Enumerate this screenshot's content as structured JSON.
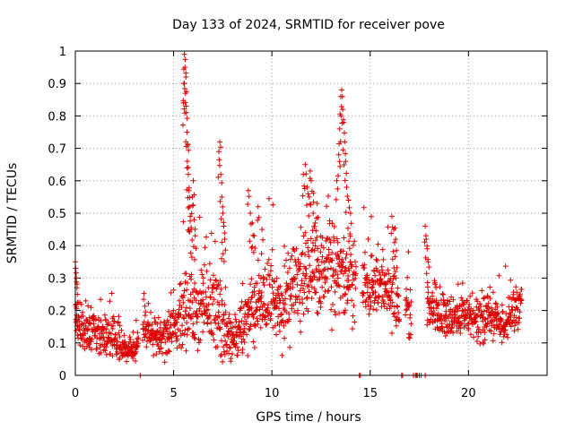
{
  "chart_data": {
    "type": "scatter",
    "title": "Day 133 of 2024, SRMTID for receiver pove",
    "xlabel": "GPS time / hours",
    "ylabel": "SRMTID / TECUs",
    "xlim": [
      0,
      24
    ],
    "ylim": [
      0,
      1
    ],
    "xticks": [
      0,
      5,
      10,
      15,
      20
    ],
    "yticks": [
      0,
      0.1,
      0.2,
      0.3,
      0.4,
      0.5,
      0.6,
      0.7,
      0.8,
      0.9,
      1
    ],
    "xtick_labels": [
      "0",
      "5",
      "10",
      "15",
      "20"
    ],
    "ytick_labels": [
      "0",
      "0.1",
      "0.2",
      "0.3",
      "0.4",
      "0.5",
      "0.6",
      "0.7",
      "0.8",
      "0.9",
      "1"
    ],
    "grid": true,
    "marker": "+",
    "color": "#dd0000",
    "envelope": {
      "x": [
        0,
        0.5,
        1,
        1.5,
        2,
        2.5,
        3,
        3.5,
        4,
        4.5,
        5,
        5.3,
        5.6,
        6,
        6.5,
        7,
        7.5,
        8,
        8.5,
        9,
        9.5,
        10,
        10.5,
        11,
        11.5,
        12,
        12.5,
        13,
        13.5,
        14,
        14.5,
        15,
        15.5,
        16,
        16.5,
        17,
        17.5,
        18,
        18.5,
        19,
        19.5,
        20,
        20.5,
        21,
        21.5,
        22,
        22.5,
        22.7
      ],
      "median": [
        0.16,
        0.13,
        0.14,
        0.12,
        0.11,
        0.08,
        0.08,
        0.14,
        0.12,
        0.12,
        0.15,
        0.16,
        0.21,
        0.24,
        0.22,
        0.21,
        0.17,
        0.1,
        0.17,
        0.22,
        0.25,
        0.23,
        0.21,
        0.26,
        0.31,
        0.33,
        0.32,
        0.34,
        0.33,
        0.31,
        0.29,
        0.26,
        0.27,
        0.24,
        0.24,
        0.2,
        0.18,
        0.22,
        0.19,
        0.17,
        0.18,
        0.19,
        0.17,
        0.18,
        0.17,
        0.16,
        0.2,
        0.25
      ],
      "spread": [
        0.06,
        0.05,
        0.05,
        0.05,
        0.04,
        0.03,
        0.03,
        0.04,
        0.04,
        0.05,
        0.06,
        0.08,
        0.12,
        0.12,
        0.1,
        0.1,
        0.08,
        0.05,
        0.07,
        0.09,
        0.1,
        0.09,
        0.09,
        0.1,
        0.12,
        0.12,
        0.11,
        0.12,
        0.12,
        0.1,
        0.08,
        0.08,
        0.07,
        0.07,
        0.07,
        0.06,
        0.05,
        0.06,
        0.05,
        0.05,
        0.05,
        0.05,
        0.05,
        0.05,
        0.05,
        0.05,
        0.06,
        0.05
      ]
    },
    "gaps": [
      [
        3.2,
        3.4
      ],
      [
        14.3,
        14.6
      ],
      [
        16.5,
        16.8
      ],
      [
        17.1,
        17.9
      ]
    ],
    "zero_points": [
      3.3,
      14.45,
      14.5,
      16.6,
      16.65,
      17.2,
      17.3,
      17.35,
      17.4,
      17.5,
      17.6,
      17.8
    ],
    "bursts": [
      {
        "name": "burst-5.6h",
        "x": [
          5.5,
          5.52,
          5.55,
          5.58,
          5.6,
          5.62,
          5.65,
          5.68,
          5.7,
          5.72,
          5.75,
          5.78,
          5.8,
          5.85,
          5.9,
          5.95,
          6.0,
          6.05,
          6.1
        ],
        "y": [
          0.84,
          0.9,
          0.99,
          0.95,
          0.87,
          0.92,
          0.81,
          0.75,
          0.66,
          0.71,
          0.62,
          0.57,
          0.52,
          0.49,
          0.45,
          0.55,
          0.6,
          0.48,
          0.43
        ]
      },
      {
        "name": "burst-7.5h",
        "x": [
          7.3,
          7.35,
          7.4,
          7.45,
          7.5,
          7.55,
          7.6
        ],
        "y": [
          0.69,
          0.72,
          0.62,
          0.55,
          0.5,
          0.46,
          0.42
        ]
      },
      {
        "name": "burst-9h",
        "x": [
          8.8,
          8.9,
          9.0,
          9.1,
          9.3,
          9.5
        ],
        "y": [
          0.57,
          0.5,
          0.47,
          0.43,
          0.52,
          0.45
        ]
      },
      {
        "name": "burst-12h",
        "x": [
          11.6,
          11.7,
          11.8,
          11.9,
          12.0,
          12.1,
          12.2,
          12.3
        ],
        "y": [
          0.62,
          0.65,
          0.58,
          0.55,
          0.6,
          0.5,
          0.47,
          0.53
        ]
      },
      {
        "name": "burst-13.6h",
        "x": [
          13.3,
          13.4,
          13.45,
          13.5,
          13.55,
          13.6,
          13.65,
          13.7,
          13.75,
          13.8,
          13.9,
          14.0
        ],
        "y": [
          0.6,
          0.68,
          0.76,
          0.86,
          0.88,
          0.82,
          0.78,
          0.72,
          0.66,
          0.58,
          0.54,
          0.5
        ]
      },
      {
        "name": "burst-16.2h",
        "x": [
          16.1,
          16.2,
          16.3
        ],
        "y": [
          0.49,
          0.45,
          0.42
        ]
      },
      {
        "name": "burst-17.9h",
        "x": [
          17.8,
          17.85,
          17.9,
          17.95
        ],
        "y": [
          0.46,
          0.42,
          0.39,
          0.35
        ]
      },
      {
        "name": "burst-0h",
        "x": [
          0.0,
          0.02,
          0.05,
          0.08,
          0.1
        ],
        "y": [
          0.35,
          0.33,
          0.3,
          0.27,
          0.25
        ]
      }
    ],
    "annotations": []
  }
}
